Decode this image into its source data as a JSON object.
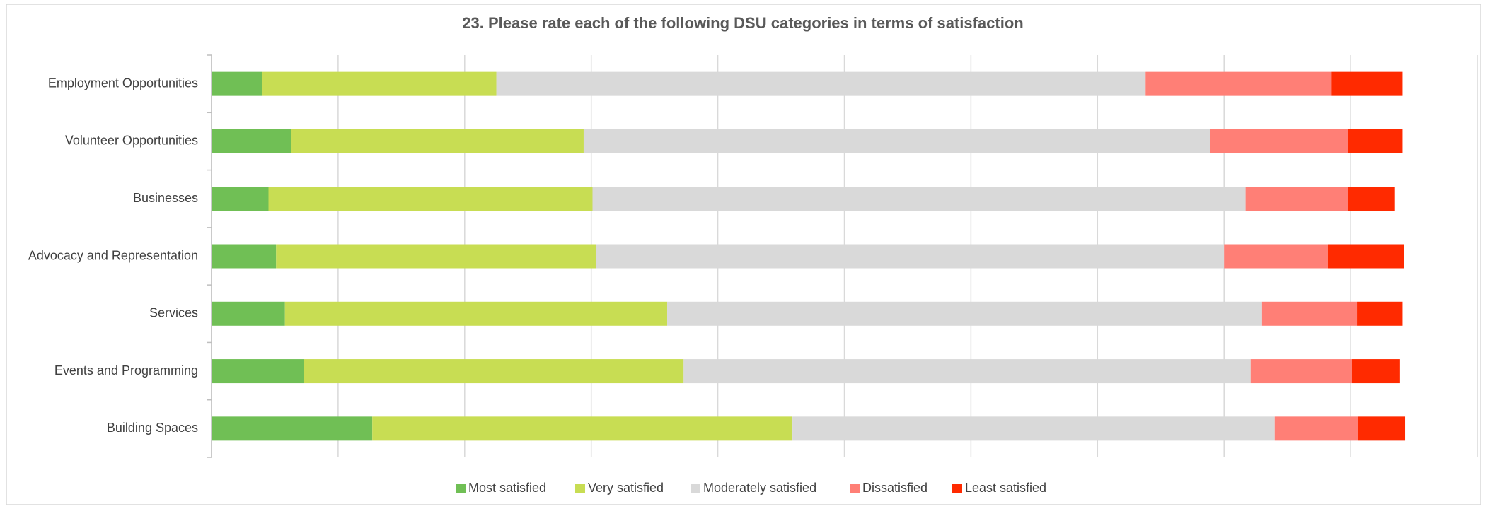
{
  "chart_data": {
    "type": "stacked_bar_horizontal",
    "title": "23. Please rate each of the following DSU categories in terms of satisfaction",
    "categories": [
      "Employment Opportunities",
      "Volunteer Opportunities",
      "Businesses",
      "Advocacy and Representation",
      "Services",
      "Events and Programming",
      "Building Spaces"
    ],
    "series": [
      {
        "name": "Most satisfied",
        "color": "#70bf55",
        "values": [
          4.0,
          6.3,
          4.5,
          5.1,
          5.8,
          7.3,
          12.7
        ]
      },
      {
        "name": "Very satisfied",
        "color": "#c8dd53",
        "values": [
          18.5,
          23.1,
          25.6,
          25.3,
          30.2,
          30.0,
          33.2
        ]
      },
      {
        "name": "Moderately satisfied",
        "color": "#d9d9d9",
        "values": [
          51.3,
          49.5,
          51.6,
          49.6,
          47.0,
          44.8,
          38.1
        ]
      },
      {
        "name": "Dissatisfied",
        "color": "#ff7f76",
        "values": [
          14.7,
          10.9,
          8.1,
          8.2,
          7.5,
          8.0,
          6.6
        ]
      },
      {
        "name": "Least satisfied",
        "color": "#ff2a00",
        "values": [
          5.6,
          4.3,
          3.7,
          6.0,
          3.6,
          3.8,
          3.7
        ]
      }
    ],
    "xlim": [
      0,
      100
    ],
    "xticks": [
      0,
      10,
      20,
      30,
      40,
      50,
      60,
      70,
      80,
      90,
      100
    ],
    "grid": true,
    "legend": "bottom"
  }
}
